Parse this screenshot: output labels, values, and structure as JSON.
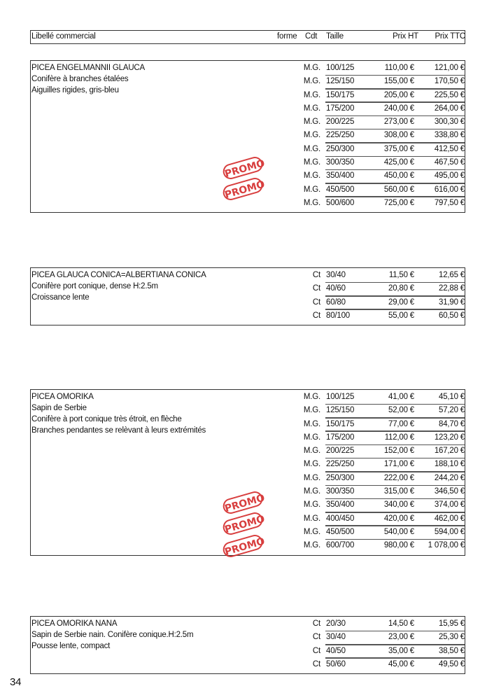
{
  "header": {
    "libelle": "Libellé commercial",
    "forme": "forme",
    "cdt": "Cdt",
    "taille": "Taille",
    "prix_ht": "Prix HT",
    "prix_ttc": "Prix TTC"
  },
  "promo_label": "PROMO",
  "colors": {
    "promo": "#d42a2a",
    "border": "#333333"
  },
  "products": [
    {
      "name": "PICEA ENGELMANNII GLAUCA",
      "lines": [
        "Conifère à branches étalées",
        "Aiguilles rigides, gris-bleu"
      ],
      "promo_count": 2,
      "rows": [
        [
          "M.G.",
          "100/125",
          "110,00 €",
          "121,00 €"
        ],
        [
          "M.G.",
          "125/150",
          "155,00 €",
          "170,50 €"
        ],
        [
          "M.G.",
          "150/175",
          "205,00 €",
          "225,50 €"
        ],
        [
          "M.G.",
          "175/200",
          "240,00 €",
          "264,00 €"
        ],
        [
          "M.G.",
          "200/225",
          "273,00 €",
          "300,30 €"
        ],
        [
          "M.G.",
          "225/250",
          "308,00 €",
          "338,80 €"
        ],
        [
          "M.G.",
          "250/300",
          "375,00 €",
          "412,50 €"
        ],
        [
          "M.G.",
          "300/350",
          "425,00 €",
          "467,50 €"
        ],
        [
          "M.G.",
          "350/400",
          "450,00 €",
          "495,00 €"
        ],
        [
          "M.G.",
          "450/500",
          "560,00 €",
          "616,00 €"
        ],
        [
          "M.G.",
          "500/600",
          "725,00 €",
          "797,50 €"
        ]
      ]
    },
    {
      "name": "PICEA GLAUCA CONICA=ALBERTIANA CONICA",
      "lines": [
        "Conifère port conique, dense H:2.5m",
        "Croissance lente"
      ],
      "promo_count": 0,
      "rows": [
        [
          "Ct",
          "30/40",
          "11,50 €",
          "12,65 €"
        ],
        [
          "Ct",
          "40/60",
          "20,80 €",
          "22,88 €"
        ],
        [
          "Ct",
          "60/80",
          "29,00 €",
          "31,90 €"
        ],
        [
          "Ct",
          "80/100",
          "55,00 €",
          "60,50 €"
        ]
      ]
    },
    {
      "name": "PICEA OMORIKA",
      "lines": [
        "Sapin de Serbie",
        "Conifère à port conique très étroit, en flèche",
        "Branches pendantes se relèvant à leurs extrémités"
      ],
      "promo_count": 3,
      "rows": [
        [
          "M.G.",
          "100/125",
          "41,00 €",
          "45,10 €"
        ],
        [
          "M.G.",
          "125/150",
          "52,00 €",
          "57,20 €"
        ],
        [
          "M.G.",
          "150/175",
          "77,00 €",
          "84,70 €"
        ],
        [
          "M.G.",
          "175/200",
          "112,00 €",
          "123,20 €"
        ],
        [
          "M.G.",
          "200/225",
          "152,00 €",
          "167,20 €"
        ],
        [
          "M.G.",
          "225/250",
          "171,00 €",
          "188,10 €"
        ],
        [
          "M.G.",
          "250/300",
          "222,00 €",
          "244,20 €"
        ],
        [
          "M.G.",
          "300/350",
          "315,00 €",
          "346,50 €"
        ],
        [
          "M.G.",
          "350/400",
          "340,00 €",
          "374,00 €"
        ],
        [
          "M.G.",
          "400/450",
          "420,00 €",
          "462,00 €"
        ],
        [
          "M.G.",
          "450/500",
          "540,00 €",
          "594,00 €"
        ],
        [
          "M.G.",
          "600/700",
          "980,00 €",
          "1 078,00 €"
        ]
      ]
    },
    {
      "name": "PICEA OMORIKA NANA",
      "lines": [
        "Sapin de Serbie nain. Conifère conique.H:2.5m",
        "Pousse lente, compact"
      ],
      "promo_count": 0,
      "rows": [
        [
          "Ct",
          "20/30",
          "14,50 €",
          "15,95 €"
        ],
        [
          "Ct",
          "30/40",
          "23,00 €",
          "25,30 €"
        ],
        [
          "Ct",
          "40/50",
          "35,00 €",
          "38,50 €"
        ],
        [
          "Ct",
          "50/60",
          "45,00 €",
          "49,50 €"
        ]
      ]
    }
  ],
  "page_number": "34"
}
